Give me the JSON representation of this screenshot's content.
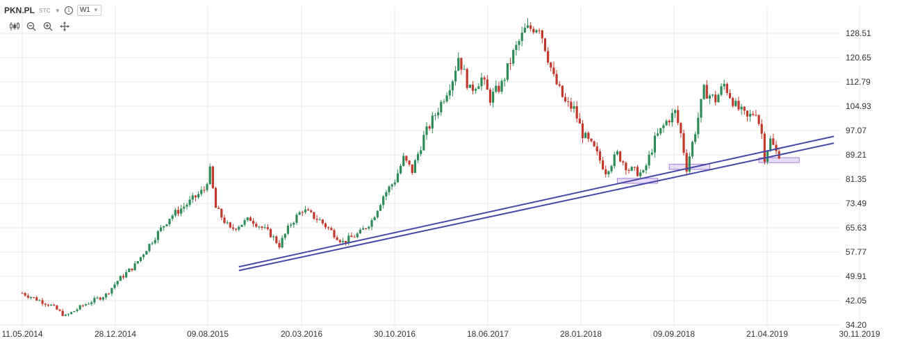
{
  "header": {
    "symbol": "PKN.PL",
    "exchange": "STC",
    "interval": "W1"
  },
  "toolbar_icons": [
    "candle-style-icon",
    "zoom-out-icon",
    "zoom-in-icon",
    "crosshair-move-icon"
  ],
  "colors": {
    "up": "#2e8b57",
    "down": "#c0392b",
    "trendline": "#4547a9",
    "zone_fill": "#d9c6f3",
    "zone_stroke": "#a580d6",
    "grid": "#e8e8e8"
  },
  "chart_data": {
    "type": "candlestick",
    "symbol": "PKN.PL",
    "interval": "W1",
    "y_ticks": [
      "128.51",
      "120.65",
      "112.79",
      "104.93",
      "97.07",
      "89.21",
      "81.35",
      "73.49",
      "65.63",
      "57.77",
      "49.91",
      "42.05",
      "34.20"
    ],
    "x_ticks": [
      "11.05.2014",
      "28.12.2014",
      "09.08.2015",
      "20.03.2016",
      "30.10.2016",
      "18.06.2017",
      "28.01.2018",
      "09.09.2018",
      "21.04.2019",
      "30.11.2019"
    ],
    "x_range": [
      "2014-05-11",
      "2019-11-30"
    ],
    "y_range": [
      34.2,
      132.0
    ],
    "grid": true,
    "price_path": [
      [
        "2014-05-11",
        44.5
      ],
      [
        "2014-07-20",
        40.5
      ],
      [
        "2014-08-24",
        37.0
      ],
      [
        "2014-10-05",
        40.5
      ],
      [
        "2014-11-30",
        44.0
      ],
      [
        "2014-12-28",
        48.5
      ],
      [
        "2015-02-08",
        53.5
      ],
      [
        "2015-03-22",
        61.5
      ],
      [
        "2015-05-03",
        69.0
      ],
      [
        "2015-06-21",
        74.0
      ],
      [
        "2015-07-26",
        78.0
      ],
      [
        "2015-08-09",
        84.0
      ],
      [
        "2015-08-23",
        72.0
      ],
      [
        "2015-09-27",
        65.0
      ],
      [
        "2015-11-15",
        68.5
      ],
      [
        "2016-01-03",
        63.5
      ],
      [
        "2016-01-24",
        60.0
      ],
      [
        "2016-02-21",
        67.0
      ],
      [
        "2016-03-20",
        71.5
      ],
      [
        "2016-05-01",
        68.0
      ],
      [
        "2016-06-26",
        61.0
      ],
      [
        "2016-08-07",
        64.0
      ],
      [
        "2016-09-04",
        68.0
      ],
      [
        "2016-10-02",
        76.0
      ],
      [
        "2016-10-30",
        81.0
      ],
      [
        "2016-11-20",
        88.0
      ],
      [
        "2016-12-11",
        84.0
      ],
      [
        "2017-01-08",
        95.0
      ],
      [
        "2017-02-19",
        106.0
      ],
      [
        "2017-03-19",
        114.0
      ],
      [
        "2017-04-02",
        121.0
      ],
      [
        "2017-04-30",
        110.0
      ],
      [
        "2017-05-28",
        114.0
      ],
      [
        "2017-06-18",
        107.5
      ],
      [
        "2017-07-16",
        112.0
      ],
      [
        "2017-08-13",
        122.0
      ],
      [
        "2017-09-10",
        129.5
      ],
      [
        "2017-10-15",
        131.0
      ],
      [
        "2017-11-19",
        114.0
      ],
      [
        "2017-12-17",
        106.0
      ],
      [
        "2018-01-07",
        104.0
      ],
      [
        "2018-01-28",
        96.0
      ],
      [
        "2018-02-25",
        91.0
      ],
      [
        "2018-03-25",
        84.0
      ],
      [
        "2018-04-22",
        89.5
      ],
      [
        "2018-05-20",
        84.5
      ],
      [
        "2018-06-24",
        83.0
      ],
      [
        "2018-07-22",
        94.0
      ],
      [
        "2018-08-19",
        100.0
      ],
      [
        "2018-09-09",
        103.0
      ],
      [
        "2018-09-23",
        96.0
      ],
      [
        "2018-10-07",
        85.0
      ],
      [
        "2018-10-28",
        97.0
      ],
      [
        "2018-11-18",
        110.0
      ],
      [
        "2018-12-16",
        107.0
      ],
      [
        "2019-01-06",
        112.0
      ],
      [
        "2019-02-03",
        105.0
      ],
      [
        "2019-03-03",
        101.0
      ],
      [
        "2019-03-24",
        103.5
      ],
      [
        "2019-04-07",
        96.0
      ],
      [
        "2019-04-14",
        88.5
      ],
      [
        "2019-04-28",
        94.0
      ],
      [
        "2019-05-12",
        90.0
      ],
      [
        "2019-05-19",
        89.5
      ]
    ],
    "trendlines": [
      {
        "from": [
          "2015-10-18",
          53.0
        ],
        "to": [
          "2019-09-29",
          95.2
        ]
      },
      {
        "from": [
          "2015-10-18",
          51.8
        ],
        "to": [
          "2019-09-29",
          93.0
        ]
      }
    ],
    "zones": [
      {
        "from": "2018-04-22",
        "to": "2018-07-29",
        "low": 80.0,
        "high": 81.6
      },
      {
        "from": "2018-08-26",
        "to": "2018-12-02",
        "low": 84.5,
        "high": 86.2
      },
      {
        "from": "2019-03-31",
        "to": "2019-07-07",
        "low": 86.7,
        "high": 88.3
      }
    ]
  }
}
